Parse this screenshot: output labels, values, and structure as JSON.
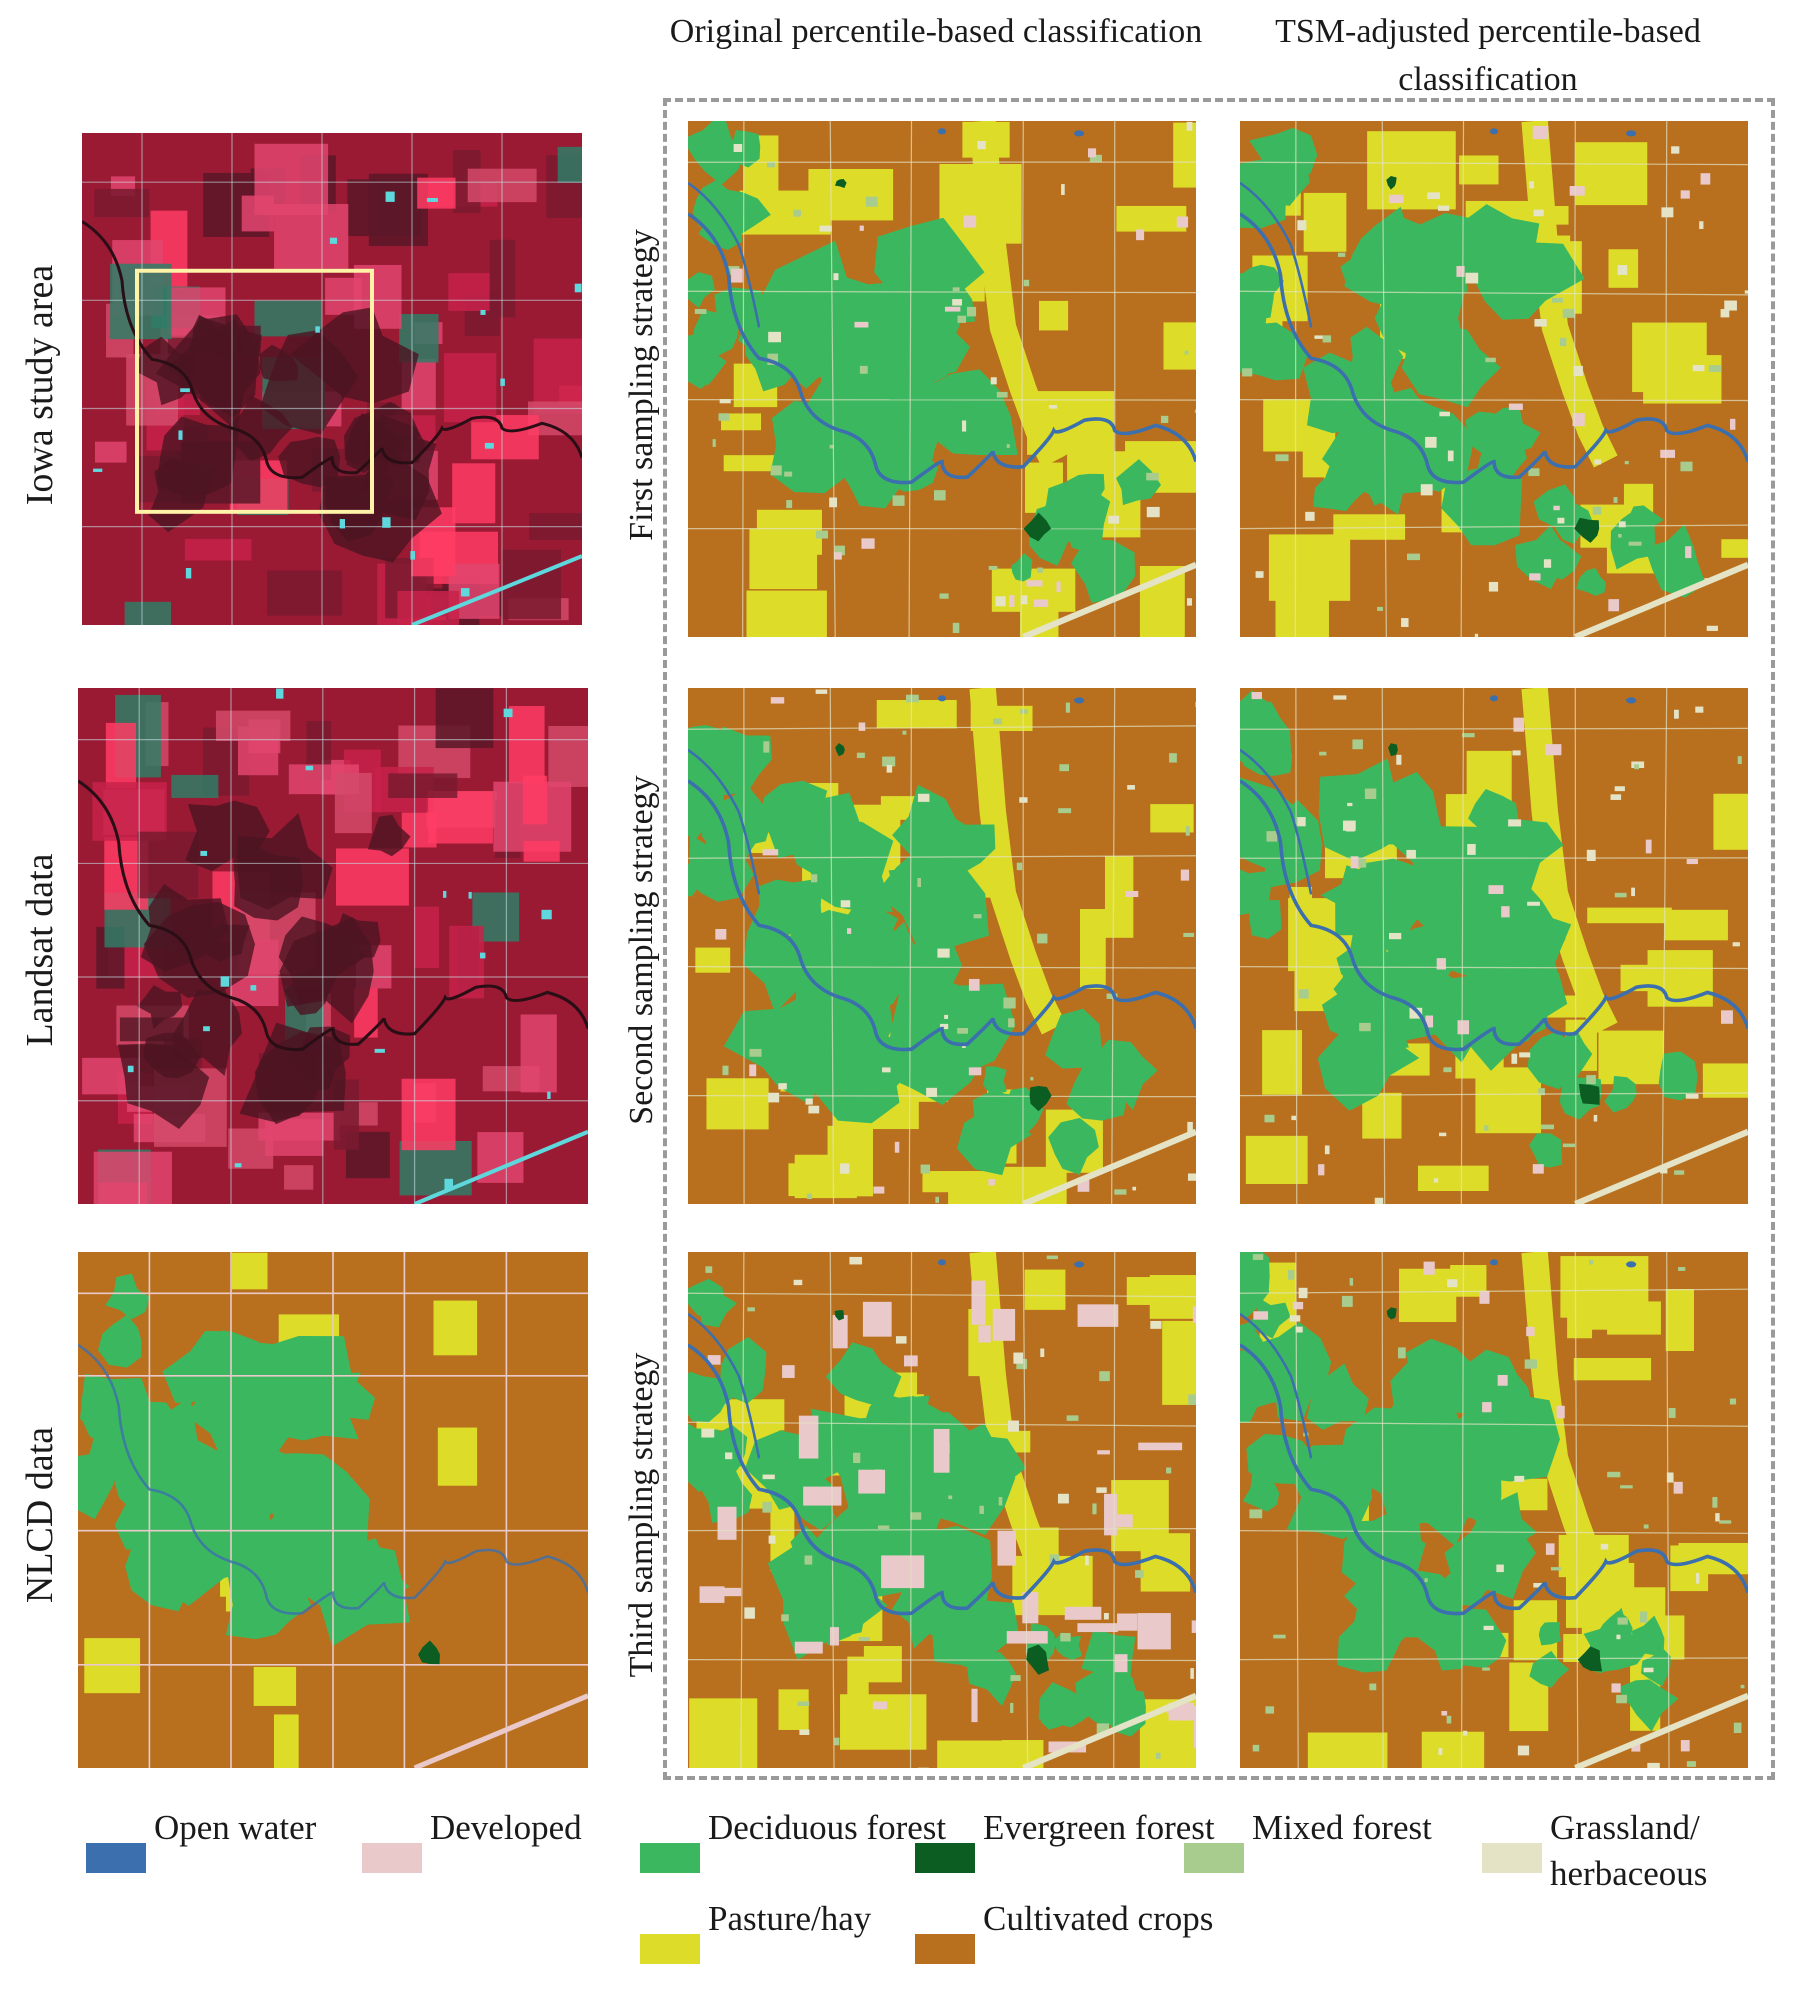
{
  "column_headers": [
    "Original percentile-based classification",
    "TSM-adjusted percentile-based classification"
  ],
  "row_labels": [
    "Iowa study area",
    "Landsat data",
    "NLCD data"
  ],
  "strategy_labels": [
    "First sampling strategy",
    "Second sampling strategy",
    "Third sampling strategy"
  ],
  "legend": [
    {
      "label": "Open water",
      "color": "#3c6fae"
    },
    {
      "label": "Developed",
      "color": "#e9c9c9"
    },
    {
      "label": "Deciduous forest",
      "color": "#3bb85f"
    },
    {
      "label": "Evergreen forest",
      "color": "#0b5d22"
    },
    {
      "label": "Mixed forest",
      "color": "#a8cc8e"
    },
    {
      "label": "Grassland/ herbaceous",
      "color": "#e4e3c6"
    },
    {
      "label": "Pasture/hay",
      "color": "#dddd29"
    },
    {
      "label": "Cultivated crops",
      "color": "#b8701e"
    }
  ],
  "colors": {
    "false_color_base": "#9a1a34",
    "false_color_bright": "#ff3c64",
    "false_color_dark": "#4c1422",
    "false_color_cyan": "#5ed8dc",
    "false_color_teal": "#2f7c66",
    "inset_box": "#fff3a8",
    "dash_frame": "#9a9a9a"
  }
}
